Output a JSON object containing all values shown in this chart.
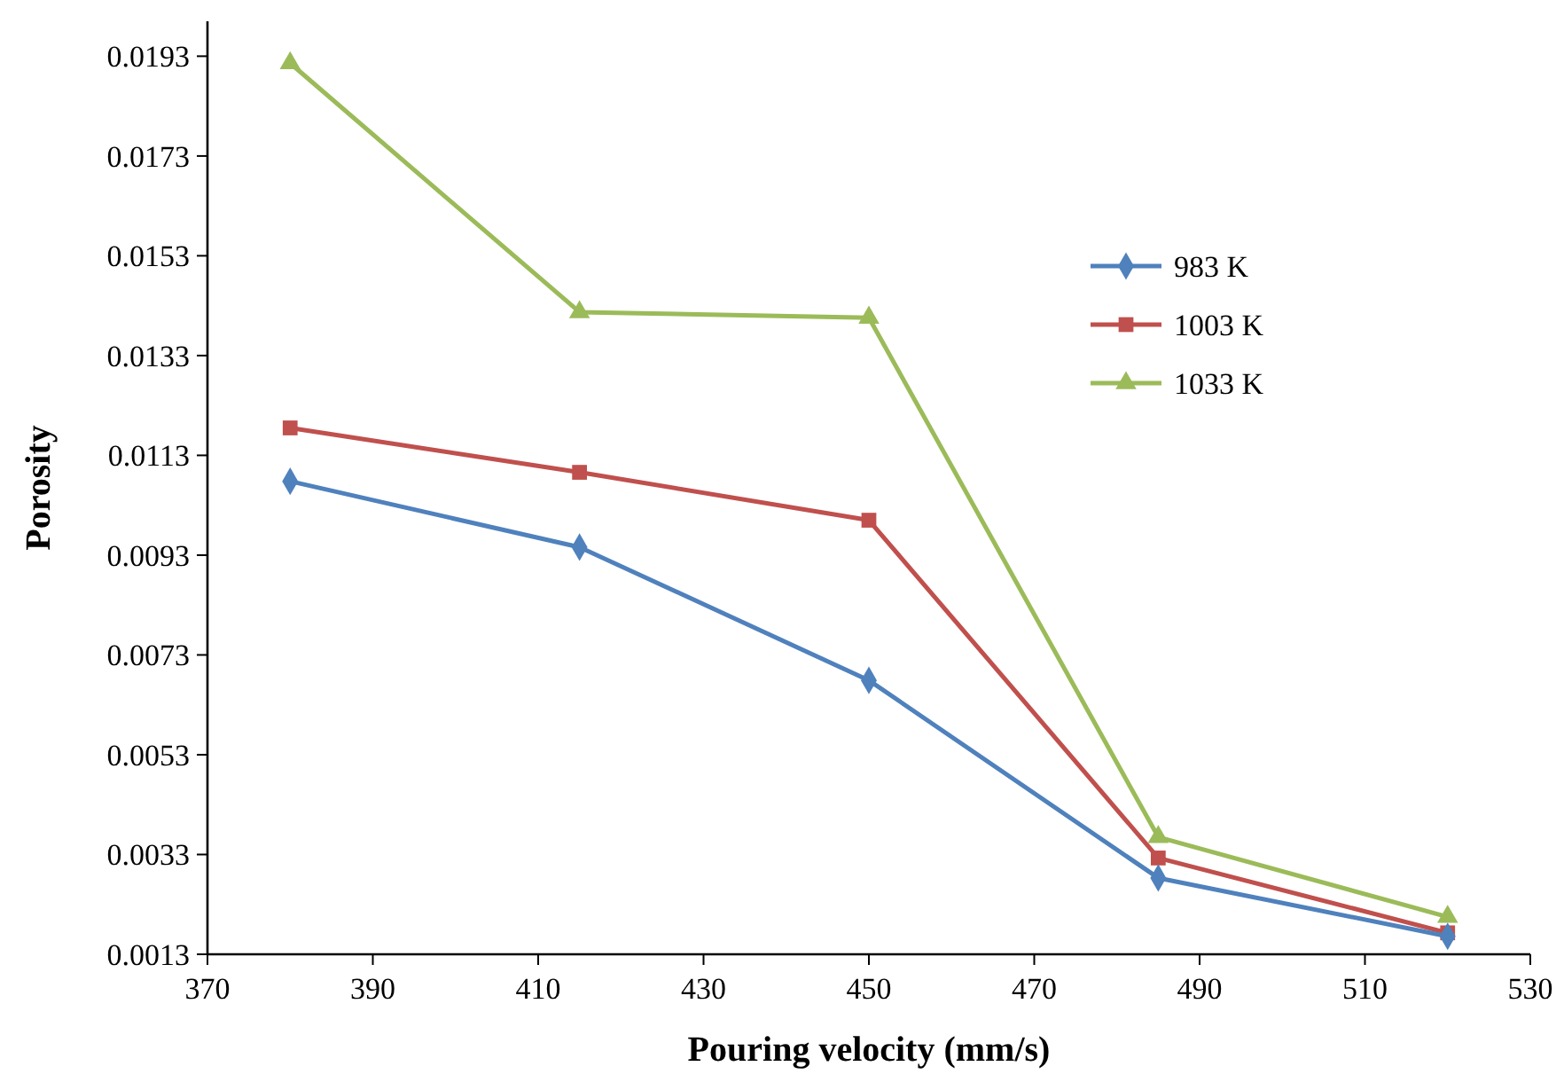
{
  "chart_data": {
    "type": "line",
    "xlabel": "Pouring velocity (mm/s)",
    "ylabel": "Porosity",
    "x": [
      380,
      415,
      450,
      485,
      520
    ],
    "series": [
      {
        "name": "983 K",
        "color": "#4f81bd",
        "marker": "diamond",
        "values": [
          0.01078,
          0.00946,
          0.00679,
          0.00283,
          0.00166
        ]
      },
      {
        "name": "1003 K",
        "color": "#c0504d",
        "marker": "square",
        "values": [
          0.01185,
          0.01096,
          0.01,
          0.00323,
          0.00173
        ]
      },
      {
        "name": "1033 K",
        "color": "#9bbb59",
        "marker": "triangle",
        "values": [
          0.01916,
          0.01417,
          0.01406,
          0.00365,
          0.00205
        ]
      }
    ],
    "xlim": [
      370,
      530
    ],
    "xticks": [
      370,
      390,
      410,
      430,
      450,
      470,
      490,
      510,
      530
    ],
    "ylim": [
      0.0013,
      0.02
    ],
    "yticks": [
      0.0013,
      0.0033,
      0.0053,
      0.0073,
      0.0093,
      0.0113,
      0.0133,
      0.0153,
      0.0173,
      0.0193
    ],
    "grid": false,
    "legend": "top right",
    "line_style": "solid"
  }
}
